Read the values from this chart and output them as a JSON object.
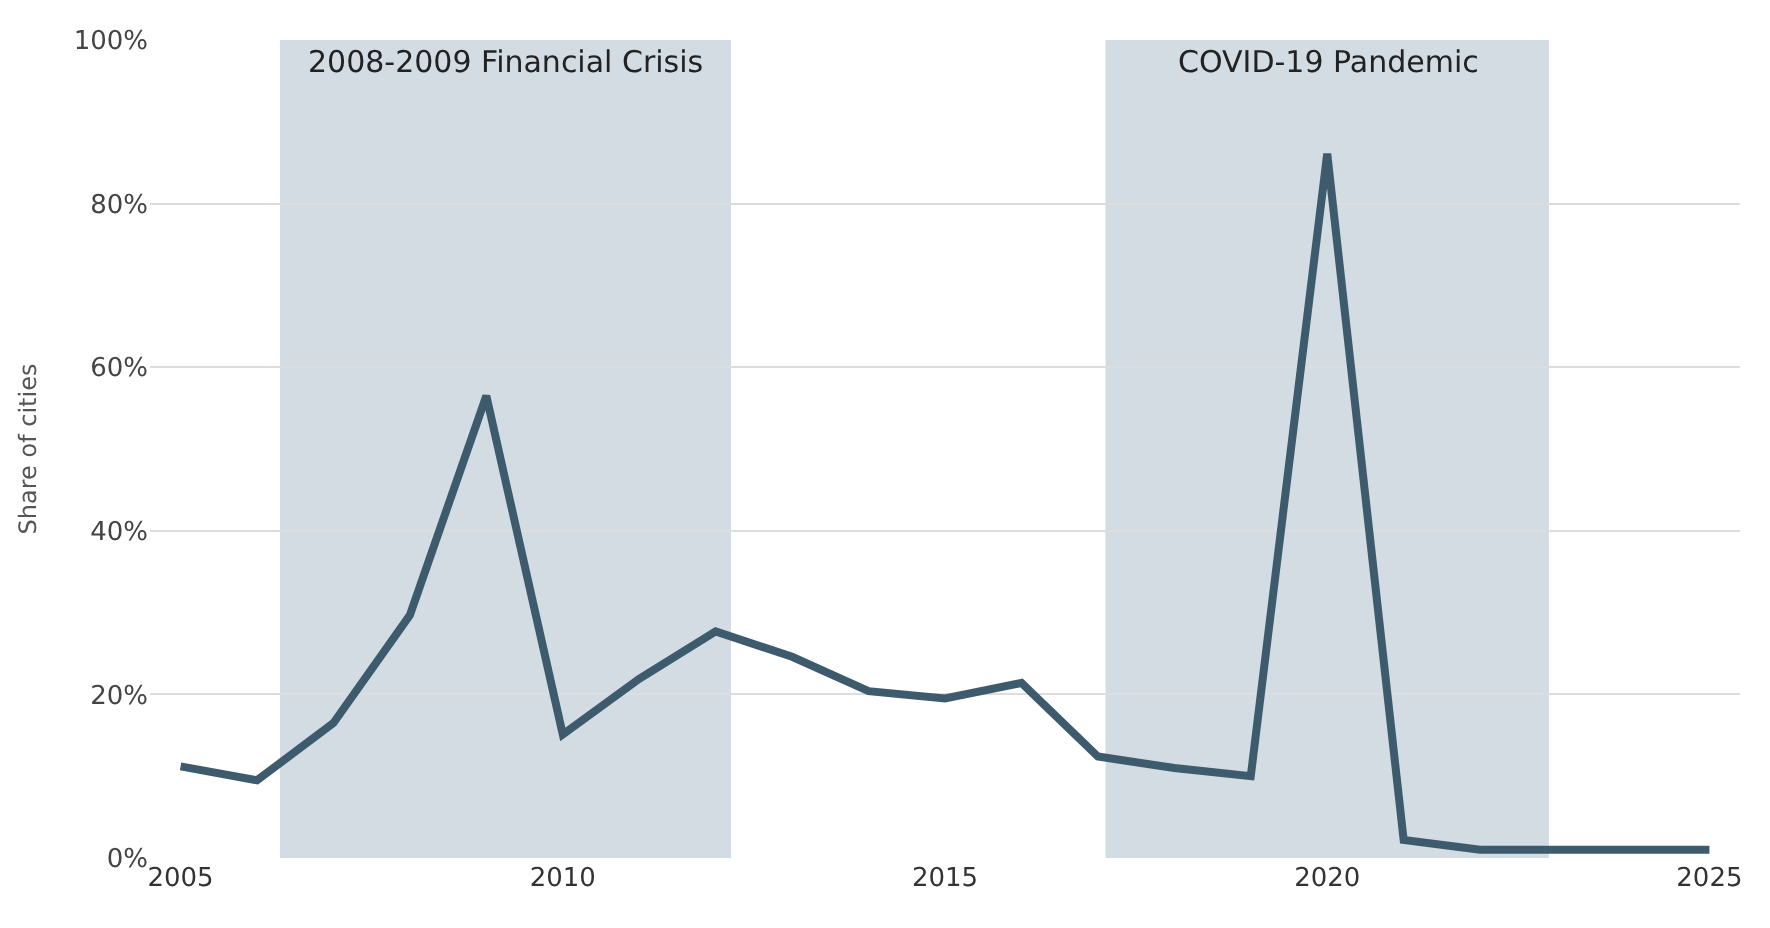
{
  "chart_data": {
    "type": "line",
    "ylabel": "Share of cities",
    "x": [
      2005,
      2006,
      2007,
      2008,
      2009,
      2010,
      2011,
      2012,
      2013,
      2014,
      2015,
      2016,
      2017,
      2018,
      2019,
      2020,
      2021,
      2022,
      2023,
      2024,
      2025
    ],
    "series": [
      {
        "color": "#3d5b6d",
        "values": [
          11.2,
          9.5,
          16.5,
          29.7,
          56.5,
          15.1,
          21.9,
          27.7,
          24.6,
          20.4,
          19.5,
          21.4,
          12.4,
          11,
          10,
          86.1,
          2.2,
          1,
          1,
          1,
          1
        ]
      }
    ],
    "xlim": [
      2004.6,
      2025.4
    ],
    "xticks": [
      2005,
      2010,
      2015,
      2020,
      2025
    ],
    "ylim": [
      0,
      100
    ],
    "yticks": [
      {
        "value": 0,
        "label": "0%"
      },
      {
        "value": 20,
        "label": "20%"
      },
      {
        "value": 40,
        "label": "40%"
      },
      {
        "value": 60,
        "label": "60%"
      },
      {
        "value": 80,
        "label": "80%"
      },
      {
        "value": 100,
        "label": "100%"
      }
    ],
    "bands": [
      {
        "axis": "x",
        "from": 2006.3,
        "to": 2012.2,
        "label": "2008-2009 Financial Crisis",
        "color": "#d3dce2"
      },
      {
        "axis": "x",
        "from": 2017.1,
        "to": 2022.9,
        "label": "COVID-19 Pandemic",
        "color": "#d3dce2"
      }
    ],
    "grid": "y",
    "marker": "none",
    "line_style": "solid",
    "legend": false
  }
}
